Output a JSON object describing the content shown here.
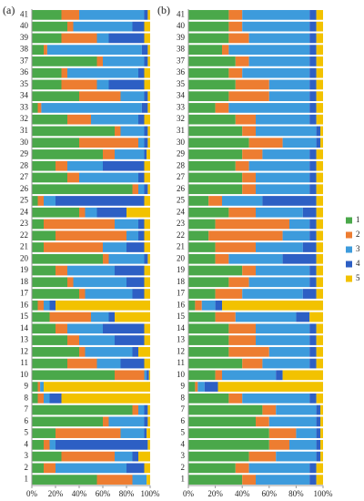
{
  "chart_data": [
    {
      "type": "hbar_stacked",
      "label": "(a)",
      "categories": [
        "1",
        "2",
        "3",
        "4",
        "5",
        "6",
        "7",
        "8",
        "9",
        "10",
        "11",
        "12",
        "13",
        "14",
        "15",
        "16",
        "17",
        "18",
        "19",
        "20",
        "21",
        "22",
        "23",
        "24",
        "25",
        "26",
        "27",
        "28",
        "29",
        "30",
        "31",
        "32",
        "33",
        "34",
        "35",
        "36",
        "37",
        "38",
        "39",
        "40",
        "41"
      ],
      "xlim": [
        0,
        100
      ],
      "xticks": [
        {
          "value": 0,
          "label": "0%"
        },
        {
          "value": 20,
          "label": "20%"
        },
        {
          "value": 40,
          "label": "40%"
        },
        {
          "value": 60,
          "label": "60%"
        },
        {
          "value": 80,
          "label": "80%"
        },
        {
          "value": 100,
          "label": "100%"
        }
      ],
      "series": [
        {
          "color": "#4aa84a",
          "values": [
            55,
            10,
            25,
            10,
            20,
            60,
            85,
            5,
            5,
            70,
            30,
            40,
            30,
            20,
            15,
            5,
            40,
            30,
            20,
            60,
            10,
            20,
            10,
            40,
            5,
            85,
            30,
            20,
            60,
            40,
            70,
            30,
            5,
            40,
            25,
            25,
            55,
            10,
            25,
            30,
            25
          ]
        },
        {
          "color": "#ed7d31",
          "values": [
            30,
            10,
            45,
            5,
            55,
            5,
            5,
            5,
            2,
            25,
            25,
            5,
            10,
            10,
            35,
            5,
            5,
            5,
            10,
            5,
            50,
            60,
            60,
            5,
            5,
            5,
            10,
            10,
            10,
            50,
            5,
            20,
            3,
            35,
            30,
            5,
            5,
            3,
            30,
            5,
            15
          ]
        },
        {
          "color": "#3d9bdc",
          "values": [
            12,
            60,
            15,
            5,
            20,
            30,
            5,
            5,
            3,
            2,
            20,
            40,
            30,
            30,
            15,
            5,
            40,
            45,
            40,
            30,
            20,
            10,
            20,
            10,
            10,
            5,
            50,
            30,
            25,
            5,
            20,
            40,
            85,
            20,
            10,
            60,
            35,
            80,
            10,
            50,
            55
          ]
        },
        {
          "color": "#2d5fc4",
          "values": [
            0,
            15,
            5,
            78,
            2,
            3,
            3,
            10,
            0,
            2,
            20,
            5,
            25,
            35,
            5,
            5,
            10,
            15,
            25,
            3,
            15,
            5,
            5,
            25,
            75,
            3,
            5,
            35,
            2,
            3,
            3,
            5,
            5,
            3,
            30,
            5,
            3,
            5,
            30,
            10,
            3
          ]
        },
        {
          "color": "#f2c200",
          "values": [
            3,
            5,
            10,
            2,
            3,
            2,
            2,
            75,
            90,
            1,
            5,
            10,
            5,
            5,
            30,
            80,
            5,
            5,
            5,
            2,
            5,
            5,
            5,
            20,
            5,
            2,
            5,
            5,
            3,
            2,
            2,
            5,
            2,
            2,
            5,
            5,
            2,
            2,
            5,
            5,
            2
          ]
        }
      ]
    },
    {
      "type": "hbar_stacked",
      "label": "(b)",
      "categories": [
        "1",
        "2",
        "3",
        "4",
        "5",
        "6",
        "7",
        "8",
        "9",
        "10",
        "11",
        "12",
        "13",
        "14",
        "15",
        "16",
        "17",
        "18",
        "19",
        "20",
        "21",
        "22",
        "23",
        "24",
        "25",
        "26",
        "27",
        "28",
        "29",
        "30",
        "31",
        "32",
        "33",
        "34",
        "35",
        "36",
        "37",
        "38",
        "39",
        "40",
        "41"
      ],
      "xlim": [
        0,
        100
      ],
      "xticks": [
        {
          "value": 0,
          "label": "0%"
        },
        {
          "value": 20,
          "label": "20%"
        },
        {
          "value": 40,
          "label": "40%"
        },
        {
          "value": 60,
          "label": "60%"
        },
        {
          "value": 80,
          "label": "80%"
        },
        {
          "value": 100,
          "label": "100%"
        }
      ],
      "series": [
        {
          "name": "1",
          "color": "#4aa84a",
          "values": [
            40,
            35,
            45,
            60,
            60,
            50,
            55,
            30,
            5,
            20,
            40,
            30,
            30,
            30,
            20,
            5,
            20,
            30,
            40,
            20,
            20,
            15,
            20,
            30,
            15,
            40,
            40,
            35,
            40,
            45,
            40,
            35,
            20,
            30,
            35,
            30,
            35,
            25,
            30,
            30,
            30
          ]
        },
        {
          "name": "2",
          "color": "#ed7d31",
          "values": [
            10,
            10,
            20,
            15,
            20,
            10,
            10,
            10,
            2,
            5,
            15,
            30,
            20,
            20,
            15,
            5,
            20,
            15,
            10,
            10,
            30,
            55,
            55,
            20,
            10,
            10,
            10,
            10,
            15,
            25,
            10,
            15,
            10,
            30,
            25,
            10,
            10,
            5,
            15,
            10,
            10
          ]
        },
        {
          "name": "3",
          "color": "#3d9bdc",
          "values": [
            40,
            45,
            30,
            20,
            15,
            35,
            30,
            50,
            5,
            40,
            35,
            30,
            40,
            40,
            45,
            10,
            45,
            45,
            40,
            40,
            35,
            20,
            15,
            35,
            30,
            40,
            40,
            45,
            35,
            25,
            45,
            40,
            60,
            30,
            30,
            50,
            45,
            60,
            45,
            50,
            50
          ]
        },
        {
          "name": "4",
          "color": "#2d5fc4",
          "values": [
            5,
            5,
            3,
            3,
            3,
            3,
            3,
            5,
            10,
            5,
            5,
            5,
            5,
            5,
            10,
            5,
            10,
            5,
            5,
            25,
            10,
            5,
            5,
            10,
            40,
            5,
            5,
            5,
            5,
            3,
            3,
            5,
            5,
            5,
            5,
            5,
            5,
            5,
            5,
            5,
            5
          ]
        },
        {
          "name": "5",
          "color": "#f2c200",
          "values": [
            5,
            5,
            2,
            2,
            2,
            2,
            2,
            5,
            78,
            30,
            5,
            5,
            5,
            5,
            10,
            75,
            5,
            5,
            5,
            5,
            5,
            5,
            5,
            5,
            5,
            5,
            5,
            5,
            5,
            2,
            2,
            5,
            5,
            5,
            5,
            5,
            5,
            5,
            5,
            5,
            5
          ]
        }
      ]
    }
  ]
}
